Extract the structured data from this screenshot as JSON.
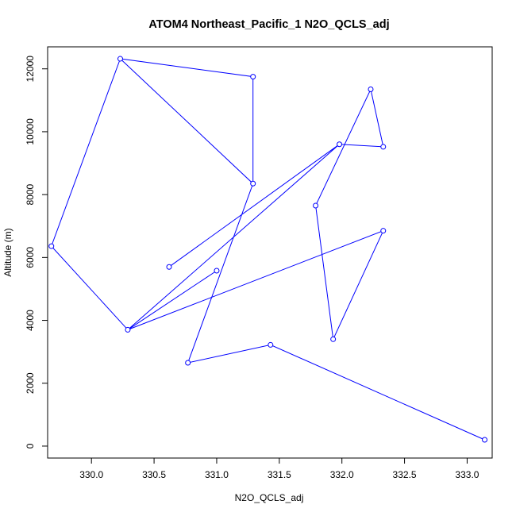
{
  "chart_data": {
    "type": "line",
    "title": "ATOM4 Northeast_Pacific_1 N2O_QCLS_adj",
    "xlabel": "N2O_QCLS_adj",
    "ylabel": "Altitude (m)",
    "xlim": [
      329.65,
      333.2
    ],
    "ylim": [
      -380,
      12700
    ],
    "xticks": [
      330.0,
      330.5,
      331.0,
      331.5,
      332.0,
      332.5,
      333.0
    ],
    "xtick_labels": [
      "330.0",
      "330.5",
      "331.0",
      "331.5",
      "332.0",
      "332.5",
      "333.0"
    ],
    "yticks": [
      0,
      2000,
      4000,
      6000,
      8000,
      10000,
      12000
    ],
    "ytick_labels": [
      "0",
      "2000",
      "4000",
      "6000",
      "8000",
      "10000",
      "12000"
    ],
    "grid": false,
    "color": "#0000ff",
    "series": [
      {
        "x": [
          333.14,
          331.43,
          330.77,
          331.29,
          331.29,
          330.23,
          331.29,
          331.29,
          330.23,
          329.68,
          330.29,
          332.33,
          331.93,
          331.79,
          332.23,
          332.33,
          331.98,
          331.98,
          330.62,
          331.98,
          330.29,
          331.0
        ],
        "y": [
          200,
          3220,
          2650,
          8350,
          8350,
          12320,
          11750,
          8350,
          12320,
          6360,
          3700,
          6850,
          3400,
          7650,
          11350,
          9520,
          9600,
          9600,
          5700,
          9600,
          3700,
          5580
        ],
        "points": [
          [
            333.14,
            200
          ],
          [
            331.43,
            3220
          ],
          [
            330.77,
            2650
          ],
          [
            331.29,
            8350
          ],
          [
            330.23,
            12320
          ],
          [
            331.29,
            11750
          ],
          [
            329.68,
            6360
          ],
          [
            330.29,
            3700
          ],
          [
            332.33,
            6850
          ],
          [
            331.93,
            3400
          ],
          [
            331.79,
            7650
          ],
          [
            332.23,
            11350
          ],
          [
            332.33,
            9520
          ],
          [
            331.98,
            9600
          ],
          [
            330.62,
            5700
          ],
          [
            331.0,
            5580
          ]
        ]
      }
    ]
  }
}
